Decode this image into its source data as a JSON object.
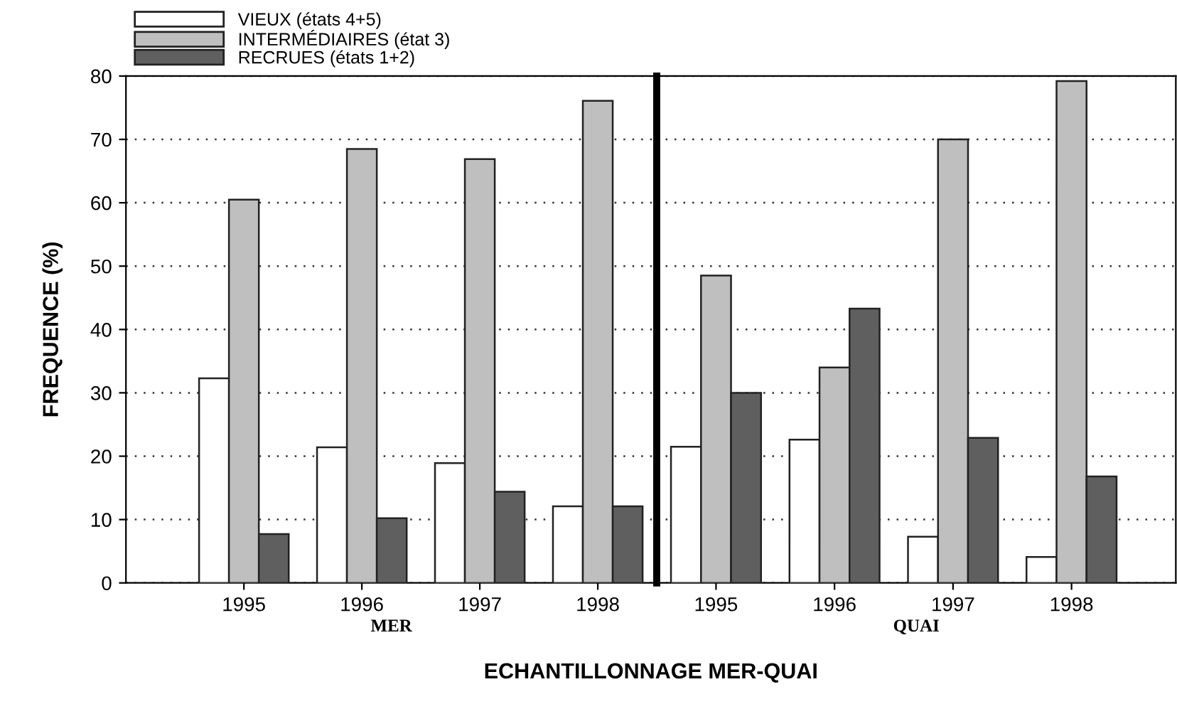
{
  "chart_data": [
    {
      "type": "bar",
      "xlabel": "MER",
      "ylabel": "FREQUENCE (%)",
      "categories": [
        "1995",
        "1996",
        "1997",
        "1998"
      ],
      "series": [
        {
          "name": "VIEUX (états 4+5)",
          "color": "#ffffff",
          "values": [
            32.3,
            21.4,
            18.9,
            12.1
          ]
        },
        {
          "name": "INTERMÉDIAIRES (état 3)",
          "color": "#bfbfbf",
          "values": [
            60.5,
            68.5,
            66.9,
            76.1
          ]
        },
        {
          "name": "RECRUES (états 1+2)",
          "color": "#5f5f5f",
          "values": [
            7.7,
            10.2,
            14.4,
            12.1
          ]
        }
      ],
      "annotations": [
        "ECHANTILLONNAGE MER-QUAI"
      ],
      "ylim": [
        0,
        80
      ],
      "yticks": [
        0,
        10,
        20,
        30,
        40,
        50,
        60,
        70,
        80
      ],
      "grid": "y",
      "legend": "top left"
    },
    {
      "type": "bar",
      "xlabel": "QUAI",
      "categories": [
        "1995",
        "1996",
        "1997",
        "1998"
      ],
      "series": [
        {
          "color": "#ffffff",
          "values": [
            21.5,
            22.6,
            7.3,
            4.1
          ]
        },
        {
          "color": "#bfbfbf",
          "values": [
            48.5,
            34.0,
            70.0,
            79.2
          ]
        },
        {
          "color": "#5f5f5f",
          "values": [
            30.0,
            43.3,
            22.9,
            16.8
          ]
        }
      ],
      "ylim": [
        0,
        80
      ],
      "yticks": [
        0,
        10,
        20,
        30,
        40,
        50,
        60,
        70,
        80
      ],
      "grid": "y",
      "tick_labels": "x"
    }
  ]
}
